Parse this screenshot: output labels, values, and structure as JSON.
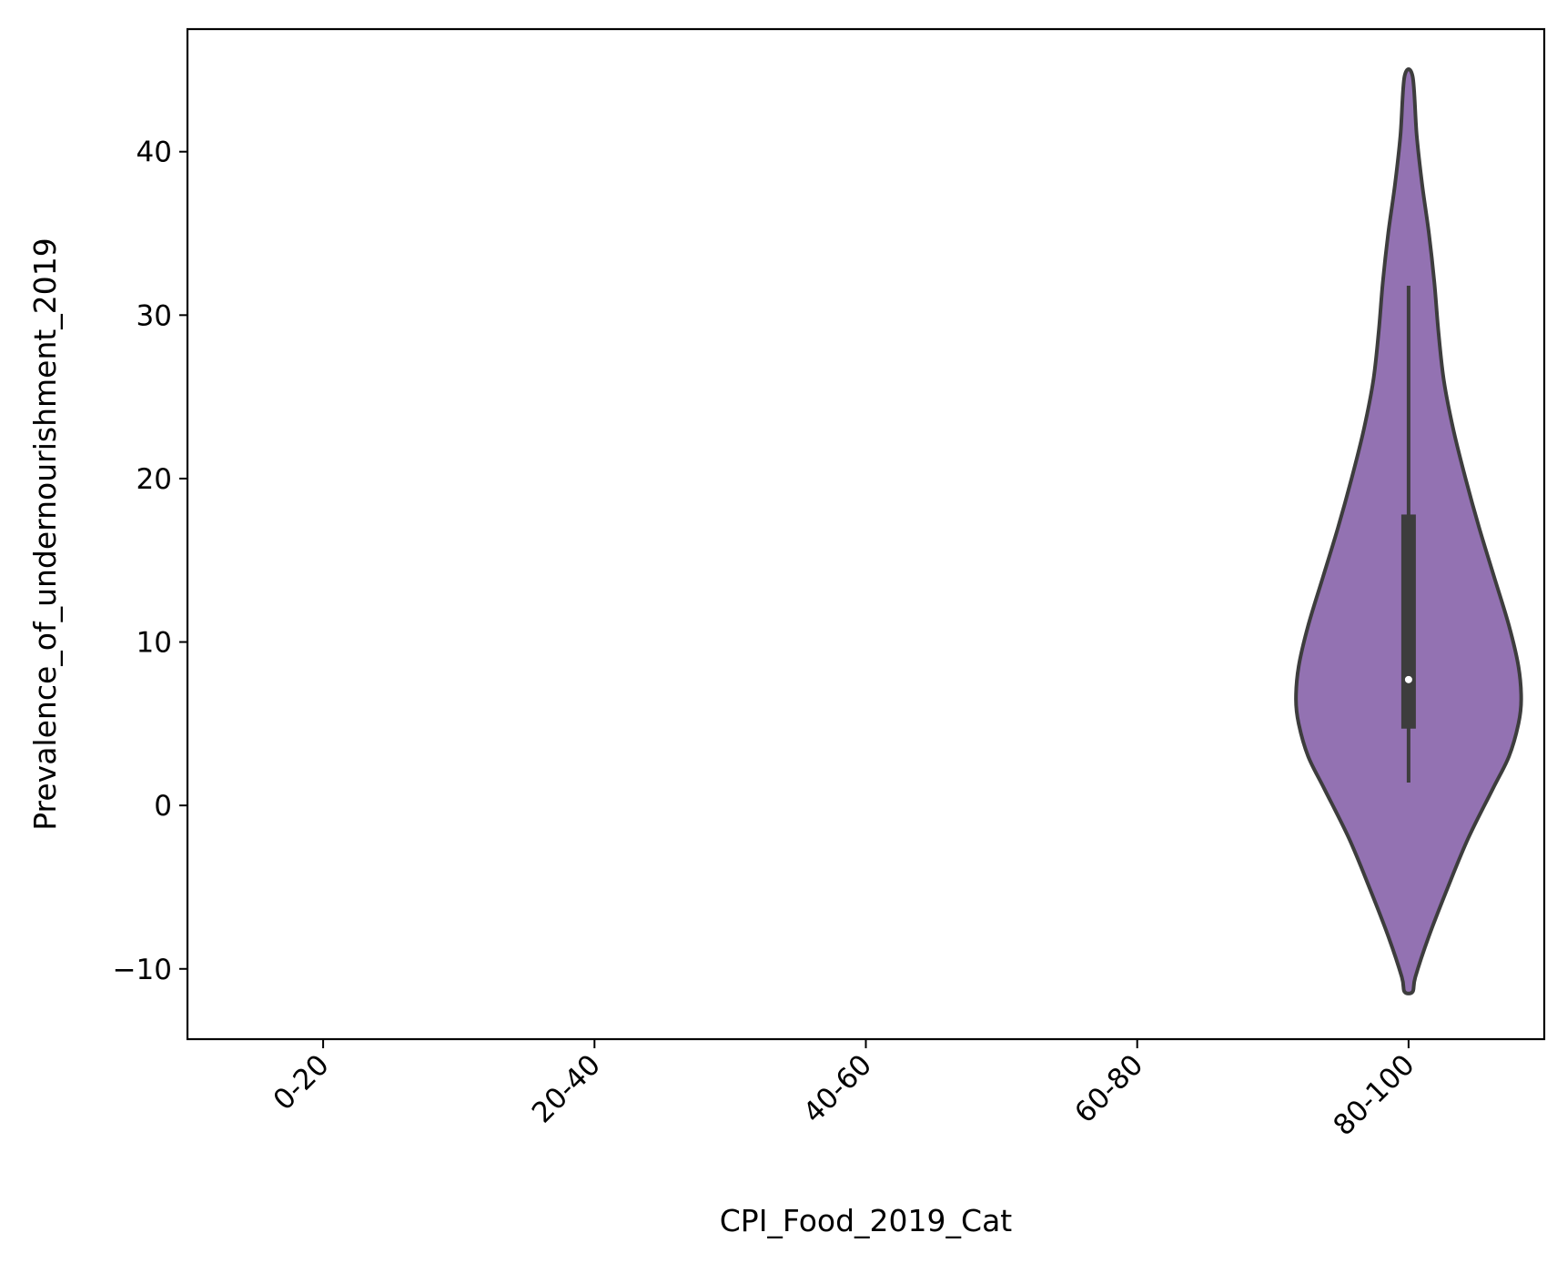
{
  "chart_data": {
    "type": "violin",
    "xlabel": "CPI_Food_2019_Cat",
    "ylabel": "Prevalence_of_undernourishment_2019",
    "categories": [
      "0-20",
      "20-40",
      "40-60",
      "60-80",
      "80-100"
    ],
    "ylim": [
      -14.3,
      47.5
    ],
    "yticks": [
      -10,
      0,
      10,
      20,
      30,
      40
    ],
    "ytick_labels": [
      "−10",
      "0",
      "10",
      "20",
      "30",
      "40"
    ],
    "grid": false,
    "colors": {
      "violin_fill": "#9372b2",
      "outline": "#3d3d3d",
      "median_dot": "#ffffff"
    },
    "violins": [
      {
        "category": "80-100",
        "min": 1.4,
        "q1": 4.7,
        "median": 7.7,
        "q3": 17.8,
        "max": 31.8,
        "kde_range": [
          -11.4,
          44.6
        ],
        "density_profile": [
          {
            "y": -11.4,
            "w": 0.03
          },
          {
            "y": -10.5,
            "w": 0.05
          },
          {
            "y": -8.0,
            "w": 0.15
          },
          {
            "y": -5.0,
            "w": 0.29
          },
          {
            "y": -2.0,
            "w": 0.44
          },
          {
            "y": 1.0,
            "w": 0.62
          },
          {
            "y": 3.0,
            "w": 0.74
          },
          {
            "y": 5.0,
            "w": 0.81
          },
          {
            "y": 6.5,
            "w": 0.83
          },
          {
            "y": 8.5,
            "w": 0.81
          },
          {
            "y": 11.0,
            "w": 0.74
          },
          {
            "y": 14.0,
            "w": 0.63
          },
          {
            "y": 17.0,
            "w": 0.52
          },
          {
            "y": 20.0,
            "w": 0.42
          },
          {
            "y": 23.0,
            "w": 0.33
          },
          {
            "y": 26.0,
            "w": 0.26
          },
          {
            "y": 29.0,
            "w": 0.22
          },
          {
            "y": 32.0,
            "w": 0.19
          },
          {
            "y": 35.0,
            "w": 0.15
          },
          {
            "y": 38.0,
            "w": 0.1
          },
          {
            "y": 41.0,
            "w": 0.06
          },
          {
            "y": 44.6,
            "w": 0.03
          }
        ]
      }
    ]
  }
}
